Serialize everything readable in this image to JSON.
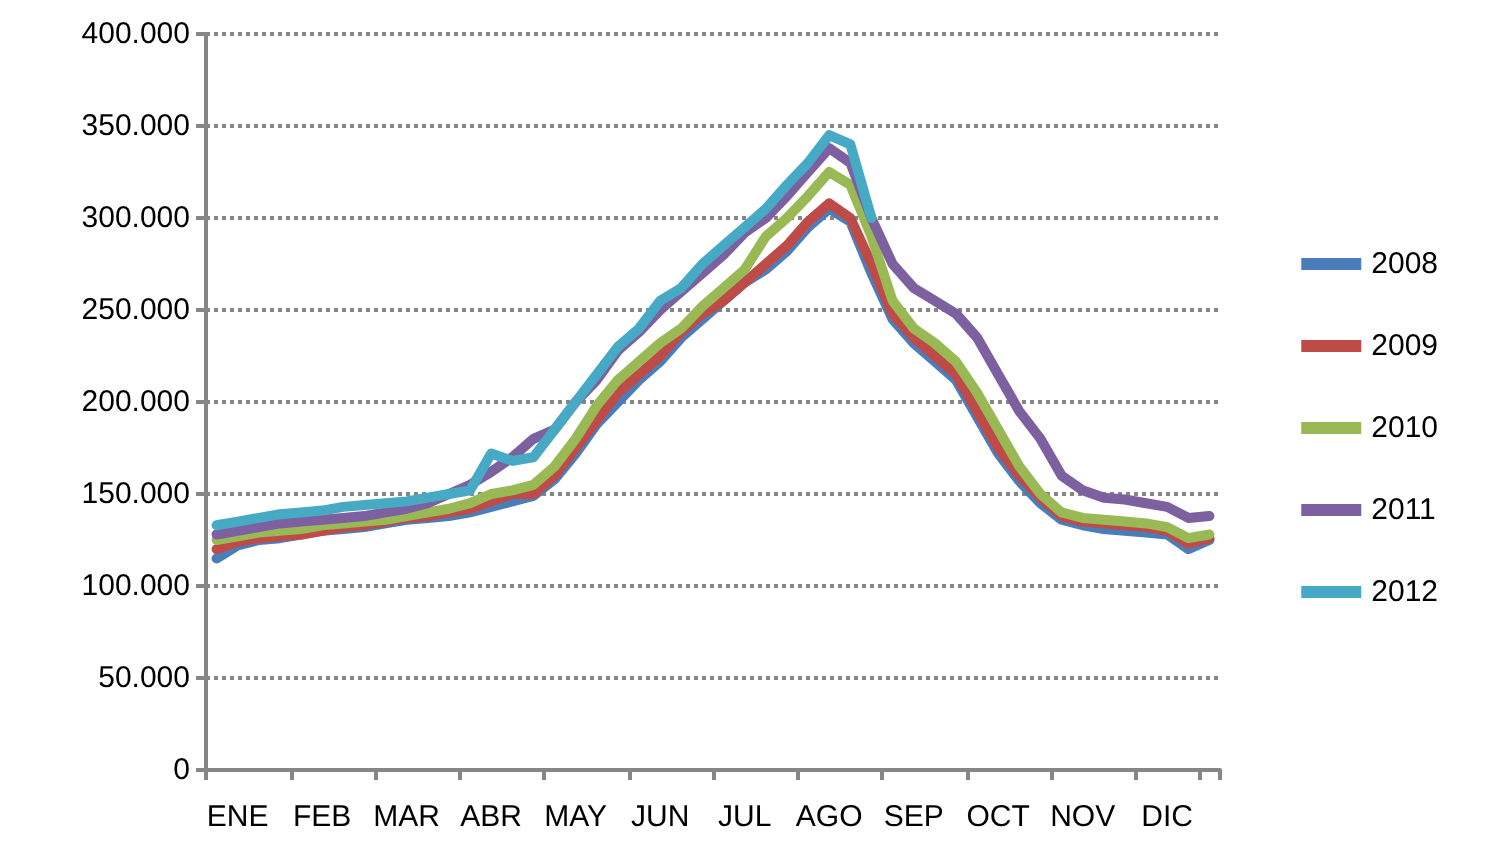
{
  "chart_data": {
    "type": "line",
    "categories": [
      null,
      "ENE",
      null,
      null,
      null,
      "FEB",
      null,
      null,
      null,
      "MAR",
      null,
      null,
      null,
      "ABR",
      null,
      null,
      null,
      "MAY",
      null,
      null,
      null,
      "JUN",
      null,
      null,
      null,
      "JUL",
      null,
      null,
      null,
      "AGO",
      null,
      null,
      null,
      "SEP",
      null,
      null,
      null,
      "OCT",
      null,
      null,
      null,
      "NOV",
      null,
      null,
      null,
      "DIC",
      null,
      null
    ],
    "series": [
      {
        "name": "2008",
        "color": "#4a7ebb",
        "values": [
          115000,
          122000,
          125000,
          126000,
          128000,
          130000,
          131000,
          132000,
          134000,
          136000,
          137000,
          138000,
          140000,
          143000,
          146000,
          149000,
          158000,
          172000,
          188000,
          200000,
          212000,
          222000,
          235000,
          245000,
          255000,
          265000,
          272000,
          282000,
          295000,
          305000,
          298000,
          270000,
          245000,
          232000,
          222000,
          212000,
          192000,
          172000,
          157000,
          145000,
          136000,
          133000,
          131000,
          130000,
          129000,
          128000,
          120000,
          125000
        ]
      },
      {
        "name": "2009",
        "color": "#be4b48",
        "values": [
          120000,
          124000,
          126000,
          127000,
          128000,
          130000,
          132000,
          133000,
          135000,
          137000,
          138000,
          140000,
          142000,
          146000,
          150000,
          150000,
          160000,
          175000,
          190000,
          205000,
          215000,
          225000,
          238000,
          248000,
          255000,
          265000,
          275000,
          285000,
          298000,
          308000,
          300000,
          275000,
          248000,
          235000,
          225000,
          215000,
          195000,
          175000,
          160000,
          148000,
          138000,
          135000,
          134000,
          133000,
          132000,
          130000,
          123000,
          126000
        ]
      },
      {
        "name": "2010",
        "color": "#98b954",
        "values": [
          125000,
          127000,
          129000,
          130000,
          131000,
          133000,
          134000,
          135000,
          136000,
          138000,
          140000,
          142000,
          145000,
          150000,
          152000,
          155000,
          165000,
          180000,
          198000,
          212000,
          222000,
          232000,
          240000,
          252000,
          262000,
          272000,
          290000,
          300000,
          312000,
          325000,
          318000,
          290000,
          255000,
          240000,
          232000,
          222000,
          205000,
          185000,
          165000,
          150000,
          140000,
          137000,
          136000,
          135000,
          134000,
          132000,
          126000,
          128000
        ]
      },
      {
        "name": "2011",
        "color": "#7d60a0",
        "values": [
          128000,
          130000,
          132000,
          134000,
          135000,
          136000,
          137000,
          138000,
          140000,
          142000,
          145000,
          150000,
          155000,
          162000,
          170000,
          180000,
          185000,
          200000,
          212000,
          228000,
          238000,
          250000,
          260000,
          270000,
          280000,
          292000,
          300000,
          312000,
          325000,
          338000,
          330000,
          300000,
          275000,
          262000,
          255000,
          248000,
          235000,
          215000,
          195000,
          180000,
          160000,
          152000,
          148000,
          147000,
          145000,
          143000,
          137000,
          138000
        ]
      },
      {
        "name": "2012",
        "color": "#46aac5",
        "values": [
          133000,
          135000,
          137000,
          139000,
          140000,
          141000,
          143000,
          144000,
          145000,
          146000,
          148000,
          150000,
          152000,
          172000,
          168000,
          170000,
          185000,
          200000,
          215000,
          230000,
          240000,
          255000,
          262000,
          275000,
          285000,
          295000,
          305000,
          318000,
          330000,
          345000,
          340000,
          300000,
          null,
          null,
          null,
          null,
          null,
          null,
          null,
          null,
          null,
          null,
          null,
          null,
          null,
          null,
          null,
          null
        ]
      }
    ],
    "ylim": [
      0,
      400000
    ],
    "yticks": [
      {
        "value": 0,
        "label": "0"
      },
      {
        "value": 50000,
        "label": "50.000"
      },
      {
        "value": 100000,
        "label": "100.000"
      },
      {
        "value": 150000,
        "label": "150.000"
      },
      {
        "value": 200000,
        "label": "200.000"
      },
      {
        "value": 250000,
        "label": "250.000"
      },
      {
        "value": 300000,
        "label": "300.000"
      },
      {
        "value": 350000,
        "label": "350.000"
      },
      {
        "value": 400000,
        "label": "400.000"
      }
    ],
    "grid": "y",
    "legend": "right",
    "marker": "none",
    "line_style": "solid"
  }
}
